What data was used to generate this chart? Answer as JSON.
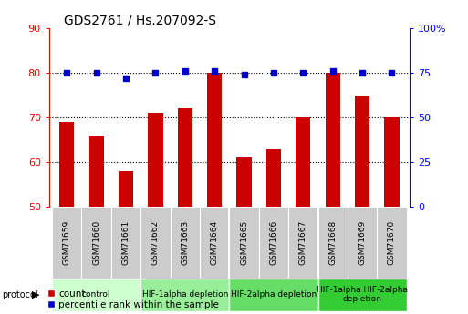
{
  "title": "GDS2761 / Hs.207092-S",
  "samples": [
    "GSM71659",
    "GSM71660",
    "GSM71661",
    "GSM71662",
    "GSM71663",
    "GSM71664",
    "GSM71665",
    "GSM71666",
    "GSM71667",
    "GSM71668",
    "GSM71669",
    "GSM71670"
  ],
  "bar_values": [
    69,
    66,
    58,
    71,
    72,
    80,
    61,
    63,
    70,
    80,
    75,
    70
  ],
  "percentile_values": [
    75,
    75,
    72,
    75,
    76,
    76,
    74,
    75,
    75,
    76,
    75,
    75
  ],
  "ylim_left": [
    50,
    90
  ],
  "ylim_right": [
    0,
    100
  ],
  "yticks_left": [
    50,
    60,
    70,
    80,
    90
  ],
  "yticks_right": [
    0,
    25,
    50,
    75,
    100
  ],
  "bar_color": "#cc0000",
  "dot_color": "#0000cc",
  "bar_bottom": 50,
  "protocol_groups": [
    {
      "label": "control",
      "start": 0,
      "end": 3,
      "color": "#ccffcc"
    },
    {
      "label": "HIF-1alpha depletion",
      "start": 3,
      "end": 6,
      "color": "#88dd88"
    },
    {
      "label": "HIF-2alpha depletion",
      "start": 6,
      "end": 9,
      "color": "#55cc55"
    },
    {
      "label": "HIF-1alpha HIF-2alpha\ndepletion",
      "start": 9,
      "end": 12,
      "color": "#22bb22"
    }
  ],
  "legend_labels": [
    "count",
    "percentile rank within the sample"
  ],
  "background_color": "#ffffff",
  "title_fontsize": 10,
  "axis_label_fontsize": 8,
  "sample_fontsize": 6.5,
  "proto_fontsize": 6.5,
  "legend_fontsize": 7.5
}
